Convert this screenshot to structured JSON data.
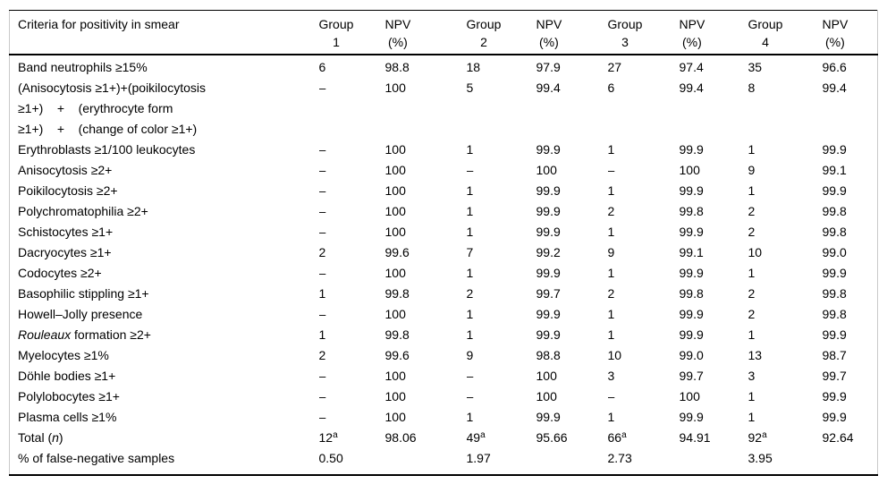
{
  "table": {
    "criteria_header": "Criteria for positivity in smear",
    "columns": [
      {
        "line1": "Group",
        "line2": "1"
      },
      {
        "line1": "NPV",
        "line2": "(%)"
      },
      {
        "line1": "Group",
        "line2": "2"
      },
      {
        "line1": "NPV",
        "line2": "(%)"
      },
      {
        "line1": "Group",
        "line2": "3"
      },
      {
        "line1": "NPV",
        "line2": "(%)"
      },
      {
        "line1": "Group",
        "line2": "4"
      },
      {
        "line1": "NPV",
        "line2": "(%)"
      }
    ],
    "rows": [
      {
        "criteria": "Band neutrophils ≥15%",
        "values": [
          "6",
          "98.8",
          "18",
          "97.9",
          "27",
          "97.4",
          "35",
          "96.6"
        ]
      },
      {
        "criteria": "(Anisocytosis ≥1+)+(poikilocytosis\n≥1+)    +    (erythrocyte form\n≥1+)    +    (change of color ≥1+)",
        "values": [
          "–",
          "100",
          "5",
          "99.4",
          "6",
          "99.4",
          "8",
          "99.4"
        ]
      },
      {
        "criteria": "Erythroblasts ≥1/100 leukocytes",
        "values": [
          "–",
          "100",
          "1",
          "99.9",
          "1",
          "99.9",
          "1",
          "99.9"
        ]
      },
      {
        "criteria": "Anisocytosis ≥2+",
        "values": [
          "–",
          "100",
          "–",
          "100",
          "–",
          "100",
          "9",
          "99.1"
        ]
      },
      {
        "criteria": "Poikilocytosis ≥2+",
        "values": [
          "–",
          "100",
          "1",
          "99.9",
          "1",
          "99.9",
          "1",
          "99.9"
        ]
      },
      {
        "criteria": "Polychromatophilia ≥2+",
        "values": [
          "–",
          "100",
          "1",
          "99.9",
          "2",
          "99.8",
          "2",
          "99.8"
        ]
      },
      {
        "criteria": "Schistocytes ≥1+",
        "values": [
          "–",
          "100",
          "1",
          "99.9",
          "1",
          "99.9",
          "2",
          "99.8"
        ]
      },
      {
        "criteria": "Dacryocytes ≥1+",
        "values": [
          "2",
          "99.6",
          "7",
          "99.2",
          "9",
          "99.1",
          "10",
          "99.0"
        ]
      },
      {
        "criteria": "Codocytes ≥2+",
        "values": [
          "–",
          "100",
          "1",
          "99.9",
          "1",
          "99.9",
          "1",
          "99.9"
        ]
      },
      {
        "criteria": "Basophilic stippling ≥1+",
        "values": [
          "1",
          "99.8",
          "2",
          "99.7",
          "2",
          "99.8",
          "2",
          "99.8"
        ]
      },
      {
        "criteria": "Howell–Jolly presence",
        "values": [
          "–",
          "100",
          "1",
          "99.9",
          "1",
          "99.9",
          "2",
          "99.8"
        ]
      },
      {
        "criteria": "*Rouleaux* formation ≥2+",
        "values": [
          "1",
          "99.8",
          "1",
          "99.9",
          "1",
          "99.9",
          "1",
          "99.9"
        ]
      },
      {
        "criteria": "Myelocytes ≥1%",
        "values": [
          "2",
          "99.6",
          "9",
          "98.8",
          "10",
          "99.0",
          "13",
          "98.7"
        ]
      },
      {
        "criteria": "Döhle bodies ≥1+",
        "values": [
          "–",
          "100",
          "–",
          "100",
          "3",
          "99.7",
          "3",
          "99.7"
        ]
      },
      {
        "criteria": "Polylobocytes ≥1+",
        "values": [
          "–",
          "100",
          "–",
          "100",
          "–",
          "100",
          "1",
          "99.9"
        ]
      },
      {
        "criteria": "Plasma cells ≥1%",
        "values": [
          "–",
          "100",
          "1",
          "99.9",
          "1",
          "99.9",
          "1",
          "99.9"
        ]
      },
      {
        "criteria": "Total (*n*)",
        "values": [
          "12^a",
          "98.06",
          "49^a",
          "95.66",
          "66^a",
          "94.91",
          "92^a",
          "92.64"
        ]
      },
      {
        "criteria": "% of false-negative samples",
        "values": [
          "0.50",
          "",
          "1.97",
          "",
          "2.73",
          "",
          "3.95",
          ""
        ]
      }
    ]
  }
}
